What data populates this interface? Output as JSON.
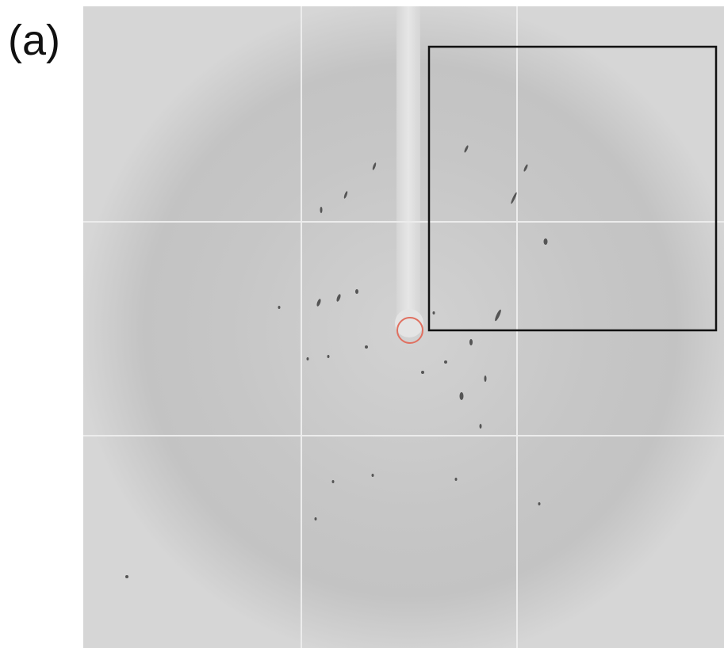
{
  "label": "(a)"
}
